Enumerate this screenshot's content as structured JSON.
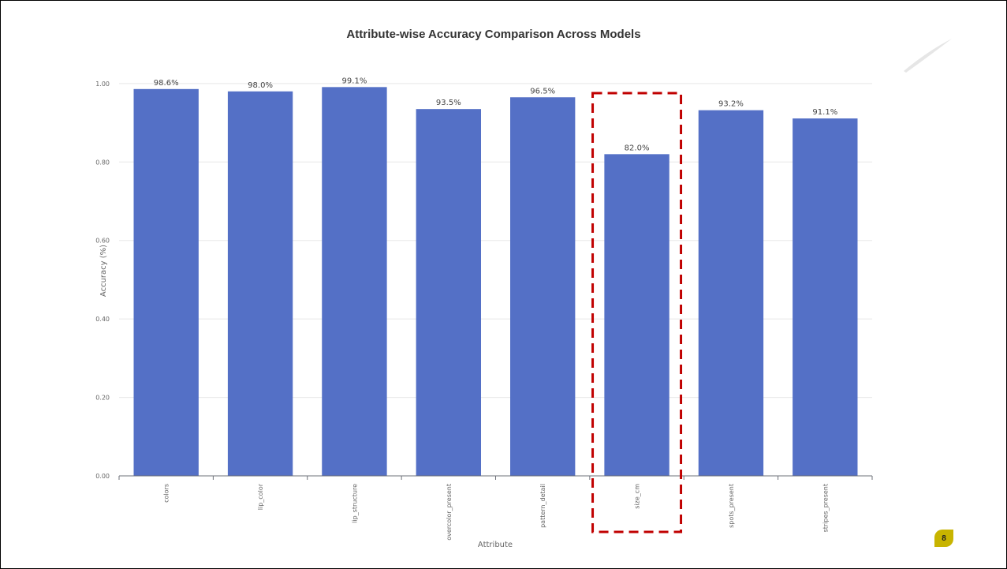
{
  "slide": {
    "page_number": "8"
  },
  "chart_data": {
    "type": "bar",
    "title": "Attribute-wise Accuracy Comparison Across Models",
    "xlabel": "Attribute",
    "ylabel": "Accuracy (%)",
    "ylim": [
      0,
      1.05
    ],
    "yticks": [
      0,
      0.2,
      0.4,
      0.6,
      0.8,
      1.0
    ],
    "ytick_labels": [
      "0.00",
      "0.20",
      "0.40",
      "0.60",
      "0.80",
      "1.00"
    ],
    "grid": true,
    "bar_color": "#5470c6",
    "categories": [
      "colors",
      "lip_color",
      "lip_structure",
      "overcolor_present",
      "pattern_detail",
      "size_cm",
      "spots_present",
      "stripes_present"
    ],
    "values": [
      0.986,
      0.98,
      0.991,
      0.935,
      0.965,
      0.82,
      0.932,
      0.911
    ],
    "data_labels": [
      "98.6%",
      "98.0%",
      "99.1%",
      "93.5%",
      "96.5%",
      "82.0%",
      "93.2%",
      "91.1%"
    ],
    "highlight": {
      "category": "size_cm",
      "style": "dashed-box",
      "color": "#c00000"
    }
  }
}
